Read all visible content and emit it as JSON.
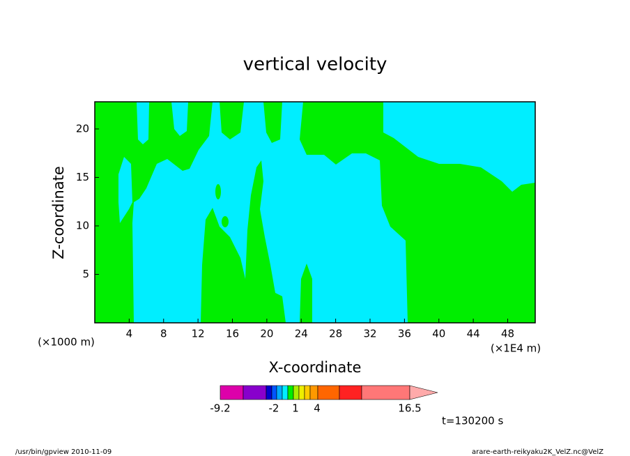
{
  "chart_data": {
    "type": "contour",
    "title": "vertical velocity",
    "xlabel": "X-coordinate",
    "ylabel": "Z-coordinate",
    "xunit": "(×1E4 m)",
    "yunit": "(×1000 m)",
    "xlim": [
      0,
      51.2
    ],
    "ylim": [
      0,
      22.8
    ],
    "xticks": [
      4,
      8,
      12,
      16,
      20,
      24,
      28,
      32,
      36,
      40,
      44,
      48
    ],
    "yticks": [
      5,
      10,
      15,
      20
    ],
    "fill_colors": [
      "#00eeff",
      "#00ee00"
    ],
    "colorbar": {
      "colors": [
        "#dd00aa",
        "#8800cc",
        "#0000cc",
        "#0055ff",
        "#00aaff",
        "#00eeff",
        "#00ee00",
        "#aaee00",
        "#eeee00",
        "#ffcc00",
        "#ff9900",
        "#ff6600",
        "#ff2222",
        "#ff7777",
        "#ffaaaa"
      ],
      "ticks": [
        -9.2,
        -2,
        1,
        4,
        16.5
      ]
    },
    "time_label": "t=130200 s",
    "footer_left": "/usr/bin/gpview  2010-11-09",
    "footer_right": "arare-earth-reikyaku2K_VelZ.nc@VelZ"
  }
}
